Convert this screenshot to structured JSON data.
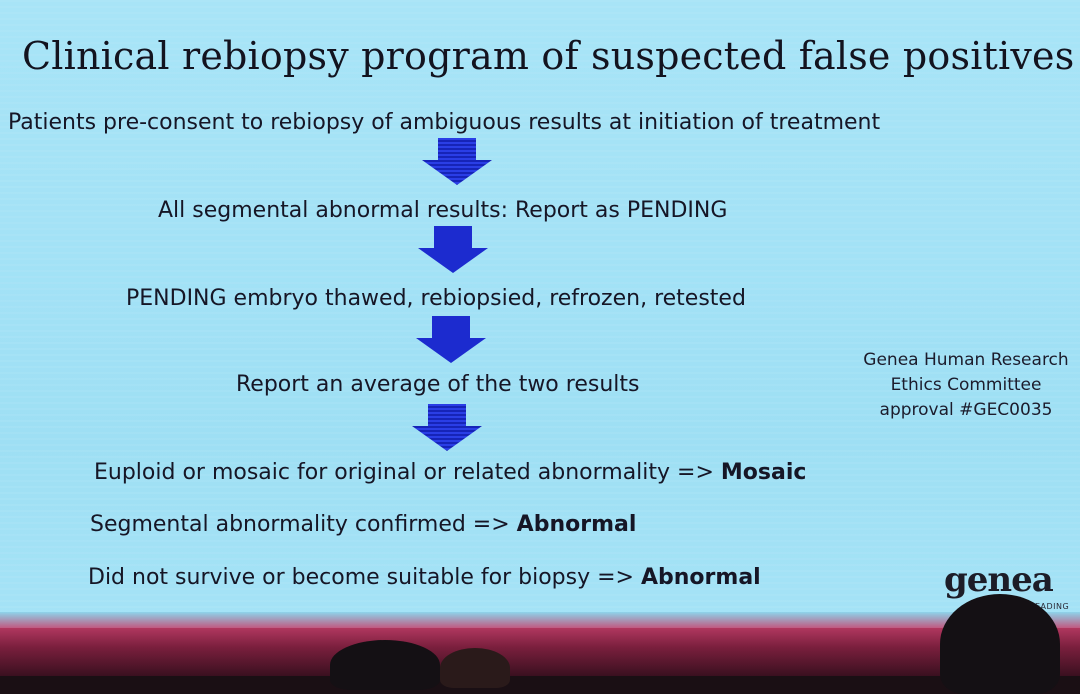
{
  "slide": {
    "title": "Clinical rebiopsy program of suspected false positives",
    "steps": [
      "Patients pre-consent to rebiopsy of ambiguous results at initiation of treatment",
      "All segmental abnormal results: Report as PENDING",
      "PENDING embryo thawed, rebiopsied, refrozen, retested",
      "Report an average of the two results"
    ],
    "outcomes": [
      {
        "text": "Euploid or mosaic for original or related abnormality => ",
        "result": "Mosaic"
      },
      {
        "text": "Segmental abnormality confirmed => ",
        "result": "Abnormal"
      },
      {
        "text": "Did not survive or become suitable for biopsy => ",
        "result": "Abnormal"
      }
    ],
    "ethics_note": [
      "Genea Human Research",
      "Ethics Committee",
      "approval #GEC0035"
    ],
    "logo_text": "genea",
    "logo_tagline": "LEADING"
  },
  "colors": {
    "slide_background": "#a6e3f6",
    "arrow_fill": "#1f2fd8",
    "text": "#161626",
    "stage": "#b0375f"
  }
}
